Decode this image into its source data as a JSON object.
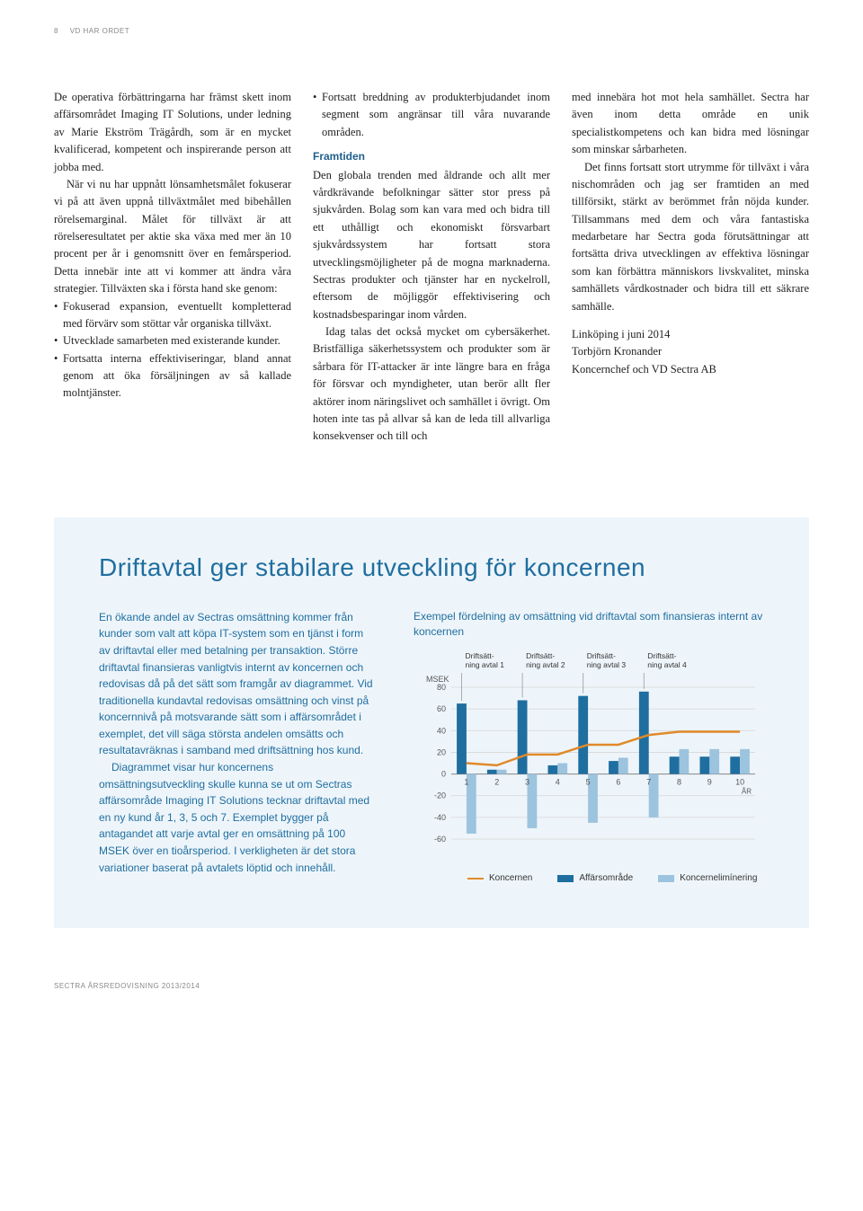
{
  "header": {
    "page_number": "8",
    "section": "VD HAR ORDET"
  },
  "col1": {
    "p1": "De operativa förbättringarna har främst skett inom affärsområdet Imaging IT Solutions, under ledning av Marie Ekström Trägårdh, som är en mycket kvalificerad, kompetent och inspirerande person att jobba med.",
    "p2": "När vi nu har uppnått lönsamhetsmålet fokuserar vi på att även uppnå tillväxtmålet med bibehållen rörelsemarginal. Målet för tillväxt är att rörelseresultatet per aktie ska växa med mer än 10 procent per år i genomsnitt över en femårsperiod. Detta innebär inte att vi kommer att ändra våra strategier. Tillväxten ska i första hand ske genom:",
    "b1": "Fokuserad expansion, eventuellt kompletterad med förvärv som stöttar vår organiska tillväxt.",
    "b2": "Utvecklade samarbeten med existerande kunder.",
    "b3": "Fortsatta interna effektiviseringar, bland annat genom att öka försäljningen av så kallade molntjänster."
  },
  "col2": {
    "b1": "Fortsatt breddning av produkterbjudandet inom segment som angränsar till våra nuvarande områden.",
    "head": "Framtiden",
    "p1": "Den globala trenden med åldrande och allt mer vårdkrävande befolkningar sätter stor press på sjukvården. Bolag som kan vara med och bidra till ett uthålligt och ekonomiskt försvarbart sjukvårdssystem har fortsatt stora utvecklingsmöjligheter på de mogna marknaderna. Sectras produkter och tjänster har en nyckelroll, eftersom de möjliggör effektivisering och kostnadsbesparingar inom vården.",
    "p2": "Idag talas det också mycket om cybersäkerhet. Bristfälliga säkerhetssystem och produkter som är sårbara för IT-attacker är inte längre bara en fråga för försvar och myndigheter, utan berör allt fler aktörer inom näringslivet och samhället i övrigt. Om hoten inte tas på allvar så kan de leda till allvarliga konsekvenser och till och"
  },
  "col3": {
    "p1": "med innebära hot mot hela samhället. Sectra har även inom detta område en unik specialistkompetens och kan bidra med lösningar som minskar sårbarheten.",
    "p2": "Det finns fortsatt stort utrymme för tillväxt i våra nischområden och jag ser framtiden an med tillförsikt, stärkt av berömmet från nöjda kunder. Tillsammans med dem och våra fantastiska medarbetare har Sectra goda förutsättningar att fortsätta driva utvecklingen av effektiva lösningar som kan förbättra människors livskvalitet, minska samhällets vårdkostnader och bidra till ett säkrare samhälle.",
    "sig1": "Linköping i juni 2014",
    "sig2": "Torbjörn Kronander",
    "sig3": "Koncernchef och VD Sectra AB"
  },
  "blue": {
    "title": "Driftavtal ger stabilare utveckling för koncernen",
    "p1": "En ökande andel av Sectras omsättning kommer från kunder som valt att köpa IT-system som en tjänst i form av driftavtal eller med betalning per transaktion. Större driftavtal finansieras vanligtvis internt av koncernen och redovisas då på det sätt som framgår av diagrammet. Vid traditionella kundavtal redovisas omsättning och vinst på koncernnivå på motsvarande sätt som i affärsområdet i exemplet, det vill säga största andelen omsätts och resultatavräknas i samband med driftsättning hos kund.",
    "p2": "Diagrammet visar hur koncernens omsättningsutveckling skulle kunna se ut om Sectras affärsområde Imaging IT Solutions tecknar driftavtal med en ny kund år 1, 3, 5 och 7. Exemplet bygger på antagandet att varje avtal ger en omsättning på 100 MSEK över en tioårsperiod. I verkligheten är det stora variationer baserat på avtalets löptid och innehåll.",
    "chart_title": "Exempel fördelning av omsättning vid driftavtal som finansieras internt av koncernen"
  },
  "chart": {
    "type": "bar-line",
    "y_label": "MSEK",
    "x_label": "ÅR",
    "x_ticks": [
      "1",
      "2",
      "3",
      "4",
      "5",
      "6",
      "7",
      "8",
      "9",
      "10"
    ],
    "y_ticks": [
      -60,
      -40,
      -20,
      0,
      20,
      40,
      60,
      80
    ],
    "ylim": [
      -60,
      80
    ],
    "callouts": [
      {
        "label": "Driftsätt-\nning avtal 1",
        "x": 1
      },
      {
        "label": "Driftsätt-\nning avtal 2",
        "x": 3
      },
      {
        "label": "Driftsätt-\nning avtal 3",
        "x": 5
      },
      {
        "label": "Driftsätt-\nning avtal 4",
        "x": 7
      }
    ],
    "bars_affars": [
      65,
      4,
      68,
      8,
      72,
      12,
      76,
      16,
      16,
      16
    ],
    "bars_elim": [
      -55,
      4,
      -50,
      10,
      -45,
      15,
      -40,
      23,
      23,
      23
    ],
    "line_koncern": [
      10,
      8,
      18,
      18,
      27,
      27,
      36,
      39,
      39,
      39
    ],
    "colors": {
      "affars": "#1f6ea0",
      "elim": "#9cc4de",
      "koncern": "#e08a2a",
      "grid": "#d5d5d5",
      "axis": "#888",
      "text": "#555",
      "bg": "#eef5fa"
    },
    "bar_width": 0.32,
    "legend": [
      {
        "label": "Koncernen",
        "color": "#e08a2a",
        "type": "line"
      },
      {
        "label": "Affärsområde",
        "color": "#1f6ea0",
        "type": "bar"
      },
      {
        "label": "Koncernelimínering",
        "color": "#9cc4de",
        "type": "bar"
      }
    ]
  },
  "footer": "SECTRA ÅRSREDOVISNING 2013/2014"
}
